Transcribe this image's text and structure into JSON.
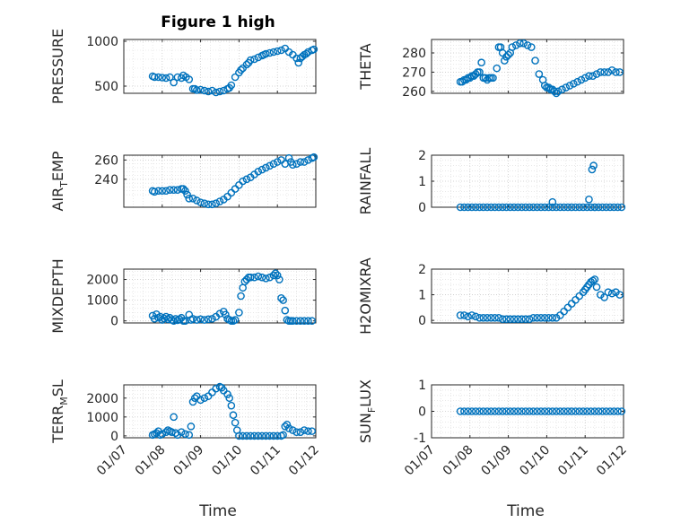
{
  "figure": {
    "title": "Figure 1 high",
    "xlabel": "Time"
  },
  "chart_data": [
    {
      "type": "scatter",
      "ylabel": "PRESSURE",
      "ylabel_parts": [
        "PRESSURE"
      ],
      "ylim": [
        420,
        1020
      ],
      "yticks": [
        500,
        1000
      ],
      "yticklabels": [
        "500",
        "1000"
      ],
      "xticklabels": [],
      "x": [
        0.75,
        0.8,
        0.9,
        1.0,
        1.1,
        1.2,
        1.3,
        1.4,
        1.5,
        1.55,
        1.62,
        1.7,
        1.8,
        1.85,
        1.9,
        2.0,
        2.1,
        2.2,
        2.3,
        2.4,
        2.5,
        2.6,
        2.7,
        2.75,
        2.8,
        2.9,
        3.0,
        3.05,
        3.1,
        3.2,
        3.25,
        3.3,
        3.4,
        3.5,
        3.6,
        3.65,
        3.7,
        3.8,
        3.9,
        4.0,
        4.1,
        4.2,
        4.3,
        4.4,
        4.5,
        4.55,
        4.6,
        4.65,
        4.7,
        4.75,
        4.8,
        4.9,
        4.95
      ],
      "y": [
        610,
        600,
        600,
        595,
        590,
        600,
        540,
        600,
        590,
        620,
        600,
        575,
        470,
        470,
        455,
        460,
        450,
        440,
        450,
        430,
        440,
        450,
        470,
        480,
        510,
        600,
        650,
        680,
        700,
        740,
        760,
        790,
        800,
        820,
        840,
        850,
        860,
        870,
        880,
        890,
        900,
        920,
        880,
        850,
        810,
        760,
        810,
        830,
        850,
        860,
        880,
        900,
        910
      ]
    },
    {
      "type": "scatter",
      "ylabel": "THETA",
      "ylabel_parts": [
        "THETA"
      ],
      "ylim": [
        259,
        287
      ],
      "yticks": [
        260,
        270,
        280
      ],
      "yticklabels": [
        "260",
        "270",
        "280"
      ],
      "xticklabels": [],
      "x": [
        0.75,
        0.8,
        0.85,
        0.9,
        0.95,
        1.0,
        1.05,
        1.1,
        1.15,
        1.2,
        1.25,
        1.3,
        1.35,
        1.4,
        1.45,
        1.5,
        1.55,
        1.6,
        1.7,
        1.75,
        1.8,
        1.85,
        1.9,
        1.95,
        2.0,
        2.05,
        2.1,
        2.2,
        2.3,
        2.4,
        2.5,
        2.6,
        2.7,
        2.8,
        2.9,
        2.95,
        3.0,
        3.05,
        3.1,
        3.15,
        3.2,
        3.25,
        3.3,
        3.4,
        3.5,
        3.6,
        3.7,
        3.8,
        3.9,
        4.0,
        4.1,
        4.2,
        4.3,
        4.4,
        4.5,
        4.6,
        4.7,
        4.8,
        4.9
      ],
      "y": [
        265,
        265,
        266,
        266,
        267,
        267,
        268,
        268,
        269,
        270,
        270,
        275,
        267,
        267,
        266,
        267,
        267,
        267,
        272,
        283,
        283,
        280,
        276,
        278,
        279,
        280,
        283,
        284,
        285,
        285,
        284,
        283,
        276,
        269,
        266,
        263,
        262,
        262,
        261,
        261,
        260,
        259,
        260,
        261,
        262,
        263,
        264,
        265,
        266,
        267,
        268,
        268,
        269,
        270,
        270,
        270,
        271,
        270,
        270
      ]
    },
    {
      "type": "scatter",
      "ylabel": "AIR_TEMP",
      "ylabel_parts": [
        "AIR",
        "T",
        "EMP"
      ],
      "ylim": [
        211,
        265
      ],
      "yticks": [
        240,
        260
      ],
      "yticklabels": [
        "240",
        "260"
      ],
      "xticklabels": [],
      "x": [
        0.75,
        0.8,
        0.9,
        1.0,
        1.1,
        1.2,
        1.3,
        1.4,
        1.5,
        1.55,
        1.6,
        1.65,
        1.7,
        1.8,
        1.9,
        2.0,
        2.1,
        2.2,
        2.3,
        2.4,
        2.5,
        2.6,
        2.7,
        2.8,
        2.9,
        3.0,
        3.1,
        3.2,
        3.3,
        3.4,
        3.5,
        3.6,
        3.7,
        3.8,
        3.9,
        4.0,
        4.1,
        4.2,
        4.3,
        4.35,
        4.4,
        4.5,
        4.6,
        4.7,
        4.8,
        4.9,
        4.95
      ],
      "y": [
        228,
        227,
        228,
        228,
        228,
        229,
        229,
        229,
        230,
        230,
        228,
        224,
        220,
        220,
        218,
        216,
        215,
        214,
        214,
        215,
        217,
        219,
        222,
        226,
        230,
        234,
        238,
        240,
        242,
        245,
        248,
        250,
        252,
        254,
        256,
        258,
        260,
        256,
        262,
        258,
        255,
        256,
        258,
        258,
        260,
        262,
        263
      ]
    },
    {
      "type": "scatter",
      "ylabel": "RAINFALL",
      "ylabel_parts": [
        "RAINFALL"
      ],
      "ylim": [
        0,
        2
      ],
      "yticks": [
        0,
        1,
        2
      ],
      "yticklabels": [
        "0",
        "1",
        "2"
      ],
      "xticklabels": [],
      "x": [
        0.75,
        0.85,
        0.95,
        1.05,
        1.15,
        1.25,
        1.35,
        1.45,
        1.55,
        1.65,
        1.75,
        1.85,
        1.95,
        2.05,
        2.15,
        2.25,
        2.35,
        2.45,
        2.55,
        2.65,
        2.75,
        2.85,
        2.95,
        3.05,
        3.15,
        3.25,
        3.35,
        3.45,
        3.55,
        3.65,
        3.75,
        3.85,
        3.95,
        4.05,
        4.15,
        4.25,
        4.35,
        4.45,
        4.55,
        4.65,
        4.75,
        4.85,
        4.95,
        3.15,
        4.1,
        4.18,
        4.22,
        4.25
      ],
      "y": [
        0,
        0,
        0,
        0,
        0,
        0,
        0,
        0,
        0,
        0,
        0,
        0,
        0,
        0,
        0,
        0,
        0,
        0,
        0,
        0,
        0,
        0,
        0,
        0,
        0,
        0,
        0,
        0,
        0,
        0,
        0,
        0,
        0,
        0,
        0,
        0,
        0,
        0,
        0,
        0,
        0,
        0,
        0,
        0.2,
        0.3,
        1.45,
        1.6,
        0
      ]
    },
    {
      "type": "scatter",
      "ylabel": "MIXDEPTH",
      "ylabel_parts": [
        "MIXDEPTH"
      ],
      "ylim": [
        -100,
        2500
      ],
      "yticks": [
        0,
        1000,
        2000
      ],
      "yticklabels": [
        "0",
        "1000",
        "2000"
      ],
      "xticklabels": [],
      "x": [
        0.75,
        0.8,
        0.85,
        0.9,
        0.95,
        1.0,
        1.05,
        1.1,
        1.15,
        1.2,
        1.25,
        1.3,
        1.35,
        1.4,
        1.45,
        1.5,
        1.55,
        1.6,
        1.7,
        1.75,
        1.8,
        1.9,
        2.0,
        2.1,
        2.2,
        2.3,
        2.4,
        2.5,
        2.6,
        2.65,
        2.7,
        2.75,
        2.8,
        2.85,
        2.9,
        3.0,
        3.05,
        3.1,
        3.15,
        3.2,
        3.25,
        3.3,
        3.4,
        3.5,
        3.6,
        3.7,
        3.8,
        3.9,
        3.95,
        4.0,
        4.05,
        4.1,
        4.15,
        4.2,
        4.25,
        4.3,
        4.35,
        4.4,
        4.5,
        4.6,
        4.7,
        4.8,
        4.9
      ],
      "y": [
        250,
        100,
        320,
        150,
        200,
        50,
        120,
        200,
        80,
        150,
        50,
        0,
        100,
        30,
        80,
        150,
        0,
        0,
        300,
        50,
        100,
        50,
        80,
        50,
        80,
        100,
        200,
        350,
        450,
        300,
        100,
        50,
        0,
        0,
        50,
        400,
        1200,
        1600,
        1900,
        2000,
        2100,
        2100,
        2100,
        2150,
        2100,
        2050,
        2100,
        2200,
        2300,
        2200,
        2000,
        1100,
        1000,
        500,
        50,
        0,
        0,
        0,
        0,
        0,
        0,
        0,
        0
      ]
    },
    {
      "type": "scatter",
      "ylabel": "H2OMIXRA",
      "ylabel_parts": [
        "H2OMIXRA"
      ],
      "ylim": [
        -0.1,
        2
      ],
      "yticks": [
        0,
        1,
        2
      ],
      "yticklabels": [
        "0",
        "1",
        "2"
      ],
      "xticklabels": [],
      "x": [
        0.75,
        0.85,
        0.95,
        1.05,
        1.15,
        1.25,
        1.35,
        1.45,
        1.55,
        1.65,
        1.75,
        1.85,
        1.95,
        2.05,
        2.15,
        2.25,
        2.35,
        2.45,
        2.55,
        2.65,
        2.75,
        2.85,
        2.95,
        3.05,
        3.15,
        3.25,
        3.35,
        3.45,
        3.55,
        3.65,
        3.75,
        3.85,
        3.95,
        4.0,
        4.05,
        4.1,
        4.15,
        4.2,
        4.25,
        4.3,
        4.4,
        4.5,
        4.6,
        4.7,
        4.8,
        4.9
      ],
      "y": [
        0.2,
        0.2,
        0.15,
        0.2,
        0.15,
        0.1,
        0.1,
        0.1,
        0.1,
        0.1,
        0.1,
        0.05,
        0.05,
        0.05,
        0.05,
        0.05,
        0.05,
        0.05,
        0.05,
        0.1,
        0.1,
        0.1,
        0.1,
        0.1,
        0.1,
        0.1,
        0.2,
        0.35,
        0.5,
        0.65,
        0.8,
        0.95,
        1.1,
        1.2,
        1.3,
        1.4,
        1.5,
        1.55,
        1.6,
        1.3,
        1.0,
        0.9,
        1.1,
        1.05,
        1.1,
        1.0
      ]
    },
    {
      "type": "scatter",
      "ylabel": "TERR_MSL",
      "ylabel_parts": [
        "TERR",
        "M",
        "SL"
      ],
      "ylim": [
        -100,
        2700
      ],
      "yticks": [
        0,
        1000,
        2000
      ],
      "yticklabels": [
        "0",
        "1000",
        "2000"
      ],
      "xticklabels": [
        "01/07",
        "01/08",
        "01/09",
        "01/10",
        "01/11",
        "01/12"
      ],
      "x": [
        0.75,
        0.8,
        0.85,
        0.9,
        0.95,
        1.0,
        1.1,
        1.15,
        1.2,
        1.25,
        1.3,
        1.35,
        1.4,
        1.5,
        1.6,
        1.7,
        1.75,
        1.8,
        1.85,
        1.9,
        2.0,
        2.1,
        2.2,
        2.3,
        2.4,
        2.5,
        2.55,
        2.6,
        2.7,
        2.75,
        2.8,
        2.85,
        2.9,
        2.95,
        3.0,
        3.1,
        3.2,
        3.3,
        3.4,
        3.5,
        3.6,
        3.7,
        3.8,
        3.9,
        4.0,
        4.1,
        4.15,
        4.2,
        4.25,
        4.3,
        4.4,
        4.5,
        4.6,
        4.7,
        4.8,
        4.9
      ],
      "y": [
        50,
        100,
        150,
        250,
        50,
        100,
        200,
        300,
        250,
        200,
        1000,
        150,
        50,
        200,
        100,
        50,
        500,
        1800,
        2000,
        2100,
        1900,
        2000,
        2100,
        2300,
        2500,
        2600,
        2550,
        2400,
        2200,
        2000,
        1600,
        1100,
        700,
        300,
        0,
        0,
        0,
        0,
        0,
        0,
        0,
        0,
        0,
        0,
        0,
        0,
        50,
        500,
        600,
        400,
        300,
        200,
        200,
        300,
        250,
        250
      ]
    },
    {
      "type": "scatter",
      "ylabel": "SUN_FLUX",
      "ylabel_parts": [
        "SUN",
        "F",
        "LUX"
      ],
      "ylim": [
        -1,
        1
      ],
      "yticks": [
        -1,
        0,
        1
      ],
      "yticklabels": [
        "-1",
        "0",
        "1"
      ],
      "xticklabels": [
        "01/07",
        "01/08",
        "01/09",
        "01/10",
        "01/11",
        "01/12"
      ],
      "x": [
        0.75,
        0.85,
        0.95,
        1.05,
        1.15,
        1.25,
        1.35,
        1.45,
        1.55,
        1.65,
        1.75,
        1.85,
        1.95,
        2.05,
        2.15,
        2.25,
        2.35,
        2.45,
        2.55,
        2.65,
        2.75,
        2.85,
        2.95,
        3.05,
        3.15,
        3.25,
        3.35,
        3.45,
        3.55,
        3.65,
        3.75,
        3.85,
        3.95,
        4.05,
        4.15,
        4.25,
        4.35,
        4.45,
        4.55,
        4.65,
        4.75,
        4.85,
        4.95
      ],
      "y": [
        0,
        0,
        0,
        0,
        0,
        0,
        0,
        0,
        0,
        0,
        0,
        0,
        0,
        0,
        0,
        0,
        0,
        0,
        0,
        0,
        0,
        0,
        0,
        0,
        0,
        0,
        0,
        0,
        0,
        0,
        0,
        0,
        0,
        0,
        0,
        0,
        0,
        0,
        0,
        0,
        0,
        0,
        0
      ]
    }
  ]
}
